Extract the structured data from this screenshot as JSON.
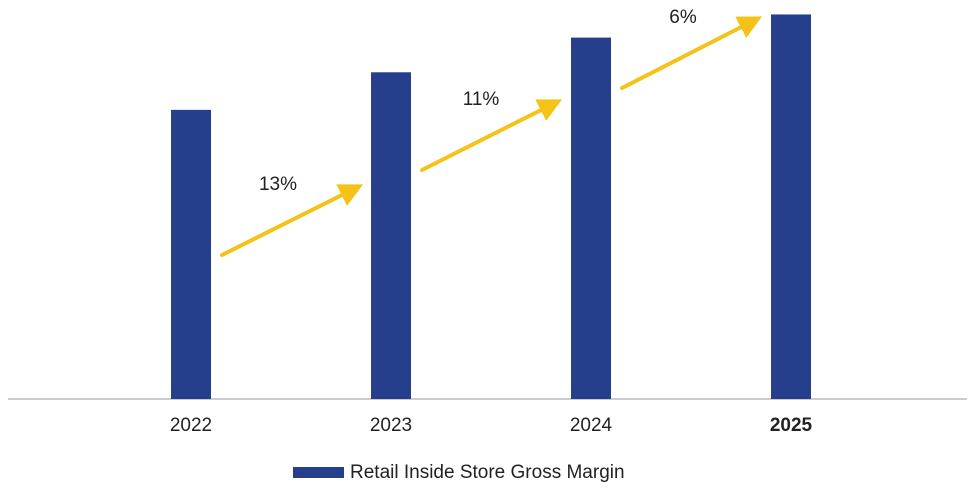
{
  "chart_data": {
    "type": "bar",
    "categories": [
      "2022",
      "2023",
      "2024",
      "2025"
    ],
    "series": [
      {
        "name": "Retail Inside Store Gross Margin",
        "color": "#253f8c",
        "values": [
          100,
          113,
          125,
          133
        ]
      }
    ],
    "ylim": [
      0,
      138
    ],
    "annotations": [
      "13%",
      "11%",
      "6%"
    ],
    "annotation_color": "#f5c218",
    "legend": "bottom"
  }
}
